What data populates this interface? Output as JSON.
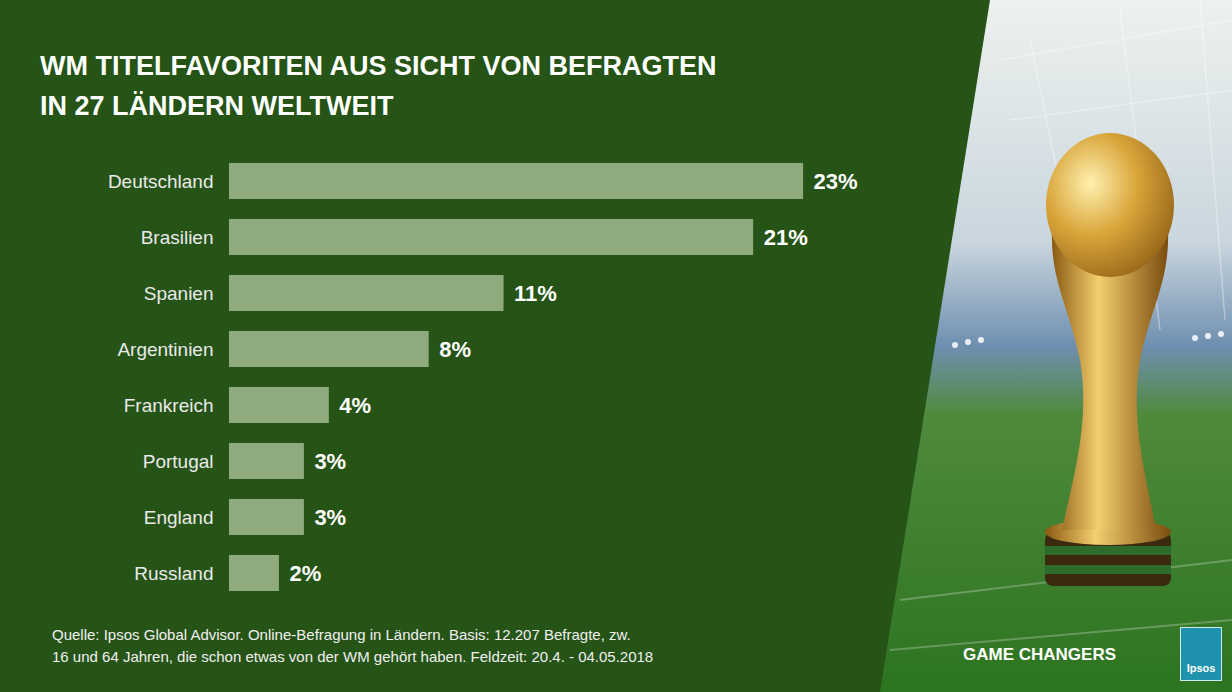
{
  "chart_data": {
    "type": "bar",
    "orientation": "horizontal",
    "title": "WM TITELFAVORITEN AUS SICHT VON BEFRAGTEN IN 27 LÄNDERN WELTWEIT",
    "categories": [
      "Deutschland",
      "Brasilien",
      "Spanien",
      "Argentinien",
      "Frankreich",
      "Portugal",
      "England",
      "Russland"
    ],
    "values": [
      23,
      21,
      11,
      8,
      4,
      3,
      3,
      2
    ],
    "value_labels": [
      "23%",
      "21%",
      "11%",
      "8%",
      "4%",
      "3%",
      "3%",
      "2%"
    ],
    "color": "#8fab7e",
    "xlim": [
      0,
      25
    ],
    "data_labels": true,
    "tick_labels": "y",
    "caption": "Quelle: Ipsos Global Advisor. Online-Befragung in Ländern. Basis: 12.207 Befragte, zw. 16 und 64 Jahren, die schon etwas von der WM gehört haben. Feldzeit: 20.4. - 04.05.2018",
    "annotations": [
      "GAME CHANGERS",
      "Ipsos"
    ]
  }
}
